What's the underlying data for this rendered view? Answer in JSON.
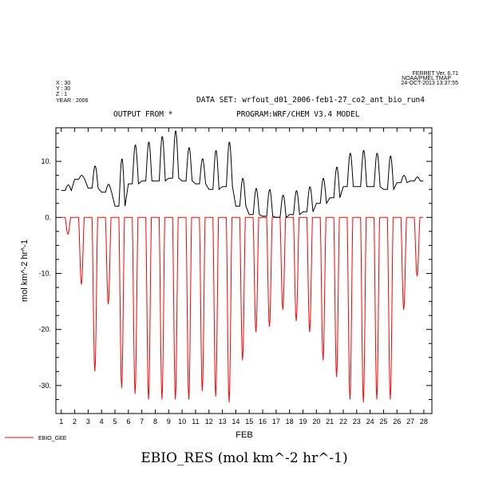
{
  "meta": {
    "ferret_version": "FERRET Ver. 6.71",
    "ferret_org": "NOAA/PMEL TMAP",
    "timestamp": "24-OCT-2013 13:37:55",
    "x_line": "X : 30",
    "y_line": "Y : 30",
    "z_line": "Z : 1",
    "year_line": "YEAR : 2006",
    "dataset": "DATA SET: wrfout_d01_2006-feb1-27_co2_ant_bio_run4",
    "output_from": "OUTPUT FROM *",
    "program": "PROGRAM:WRF/CHEM V3.4 MODEL"
  },
  "chart_data": {
    "type": "line",
    "title": "EBIO_RES (mol km^-2 hr^-1)",
    "xlabel": "FEB",
    "ylabel": "mol km^-2 hr^-1",
    "xlim": [
      0.6,
      28.6
    ],
    "ylim": [
      -35,
      16
    ],
    "x_ticks": [
      "1",
      "2",
      "3",
      "4",
      "5",
      "6",
      "7",
      "8",
      "9",
      "10",
      "11",
      "12",
      "13",
      "14",
      "15",
      "16",
      "17",
      "18",
      "19",
      "20",
      "21",
      "22",
      "23",
      "24",
      "25",
      "26",
      "27",
      "28"
    ],
    "y_ticks": [
      {
        "value": 10,
        "label": "10."
      },
      {
        "value": 0,
        "label": "0."
      },
      {
        "value": -10,
        "label": "-10."
      },
      {
        "value": -20,
        "label": "-20."
      },
      {
        "value": -30,
        "label": "-30."
      }
    ],
    "legend": {
      "placement": "bottom-left",
      "label": "EBIO_GEE"
    },
    "colors": {
      "res": "#000000",
      "gee": "#ff0000"
    },
    "series": [
      {
        "name": "",
        "color": "#000000",
        "daily_peak": [
          5.8,
          7.5,
          9.2,
          5.9,
          10.5,
          13.0,
          13.5,
          14.5,
          15.5,
          12.5,
          10.5,
          12.0,
          13.5,
          7.0,
          5.2,
          5.0,
          4.0,
          4.8,
          5.5,
          7.0,
          9.0,
          11.5,
          12.0,
          11.5,
          11.0,
          7.5,
          7.2
        ],
        "daily_base": [
          4.8,
          6.8,
          5.2,
          4.5,
          2.0,
          6.0,
          6.5,
          6.5,
          7.0,
          6.5,
          6.0,
          5.0,
          5.5,
          2.0,
          0.5,
          0.2,
          0.0,
          0.5,
          1.0,
          2.5,
          3.5,
          5.5,
          5.5,
          5.5,
          5.0,
          6.2,
          6.5
        ]
      },
      {
        "name": "EBIO_GEE",
        "color": "#ff0000",
        "daily_min": [
          -3.0,
          -12.0,
          -27.5,
          -15.5,
          -30.5,
          -31.5,
          -32.5,
          -32.5,
          -32.5,
          -32.5,
          -31.0,
          -32.0,
          -33.0,
          -25.5,
          -20.5,
          -19.5,
          -16.5,
          -18.5,
          -20.5,
          -25.5,
          -28.5,
          -32.5,
          -33.0,
          -32.5,
          -32.5,
          -16.5,
          -10.5
        ]
      }
    ]
  }
}
